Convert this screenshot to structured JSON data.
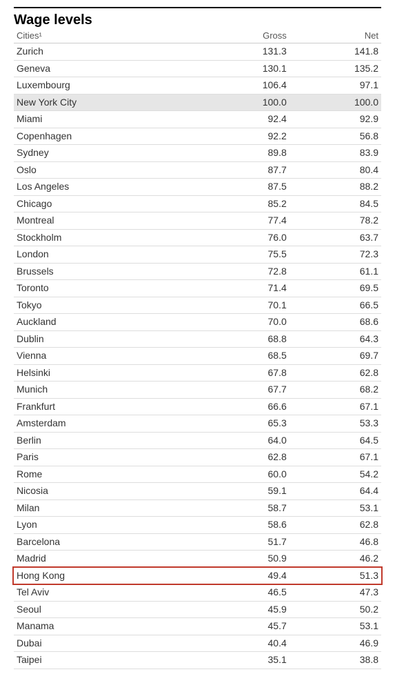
{
  "title": "Wage levels",
  "columns": {
    "city": "Cities¹",
    "gross": "Gross",
    "net": "Net"
  },
  "highlight_row_index": 31,
  "highlight_color": "#c0392b",
  "shaded_row_index": 3,
  "shaded_color": "#e6e6e6",
  "rows": [
    {
      "city": "Zurich",
      "gross": "131.3",
      "net": "141.8"
    },
    {
      "city": "Geneva",
      "gross": "130.1",
      "net": "135.2"
    },
    {
      "city": "Luxembourg",
      "gross": "106.4",
      "net": "97.1"
    },
    {
      "city": "New York City",
      "gross": "100.0",
      "net": "100.0"
    },
    {
      "city": "Miami",
      "gross": "92.4",
      "net": "92.9"
    },
    {
      "city": "Copenhagen",
      "gross": "92.2",
      "net": "56.8"
    },
    {
      "city": "Sydney",
      "gross": "89.8",
      "net": "83.9"
    },
    {
      "city": "Oslo",
      "gross": "87.7",
      "net": "80.4"
    },
    {
      "city": "Los Angeles",
      "gross": "87.5",
      "net": "88.2"
    },
    {
      "city": "Chicago",
      "gross": "85.2",
      "net": "84.5"
    },
    {
      "city": "Montreal",
      "gross": "77.4",
      "net": "78.2"
    },
    {
      "city": "Stockholm",
      "gross": "76.0",
      "net": "63.7"
    },
    {
      "city": "London",
      "gross": "75.5",
      "net": "72.3"
    },
    {
      "city": "Brussels",
      "gross": "72.8",
      "net": "61.1"
    },
    {
      "city": "Toronto",
      "gross": "71.4",
      "net": "69.5"
    },
    {
      "city": "Tokyo",
      "gross": "70.1",
      "net": "66.5"
    },
    {
      "city": "Auckland",
      "gross": "70.0",
      "net": "68.6"
    },
    {
      "city": "Dublin",
      "gross": "68.8",
      "net": "64.3"
    },
    {
      "city": "Vienna",
      "gross": "68.5",
      "net": "69.7"
    },
    {
      "city": "Helsinki",
      "gross": "67.8",
      "net": "62.8"
    },
    {
      "city": "Munich",
      "gross": "67.7",
      "net": "68.2"
    },
    {
      "city": "Frankfurt",
      "gross": "66.6",
      "net": "67.1"
    },
    {
      "city": "Amsterdam",
      "gross": "65.3",
      "net": "53.3"
    },
    {
      "city": "Berlin",
      "gross": "64.0",
      "net": "64.5"
    },
    {
      "city": "Paris",
      "gross": "62.8",
      "net": "67.1"
    },
    {
      "city": "Rome",
      "gross": "60.0",
      "net": "54.2"
    },
    {
      "city": "Nicosia",
      "gross": "59.1",
      "net": "64.4"
    },
    {
      "city": "Milan",
      "gross": "58.7",
      "net": "53.1"
    },
    {
      "city": "Lyon",
      "gross": "58.6",
      "net": "62.8"
    },
    {
      "city": "Barcelona",
      "gross": "51.7",
      "net": "46.8"
    },
    {
      "city": "Madrid",
      "gross": "50.9",
      "net": "46.2"
    },
    {
      "city": "Hong Kong",
      "gross": "49.4",
      "net": "51.3"
    },
    {
      "city": "Tel Aviv",
      "gross": "46.5",
      "net": "47.3"
    },
    {
      "city": "Seoul",
      "gross": "45.9",
      "net": "50.2"
    },
    {
      "city": "Manama",
      "gross": "45.7",
      "net": "53.1"
    },
    {
      "city": "Dubai",
      "gross": "40.4",
      "net": "46.9"
    },
    {
      "city": "Taipei",
      "gross": "35.1",
      "net": "38.8"
    }
  ]
}
